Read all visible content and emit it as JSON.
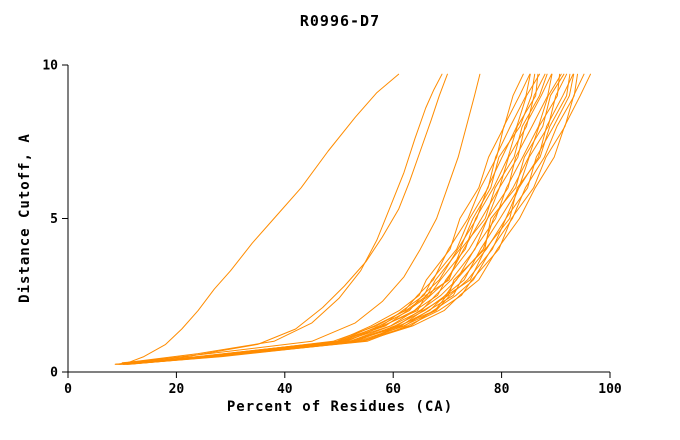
{
  "colors": {
    "curve": "#ff8c00",
    "axis": "#000000",
    "background": "#ffffff"
  },
  "chart_data": {
    "type": "line",
    "title": "R0996-D7",
    "xlabel": "Percent of Residues (CA)",
    "ylabel": "Distance Cutoff, A",
    "xlim": [
      0,
      100
    ],
    "ylim": [
      0,
      10
    ],
    "xticks": [
      0,
      20,
      40,
      60,
      80,
      100
    ],
    "yticks": [
      0,
      5,
      10
    ],
    "grid": false,
    "legend": null,
    "line_color": "#ff8c00",
    "shared_y": [
      0.25,
      0.5,
      1,
      1.5,
      2,
      2.5,
      3,
      4,
      5,
      6,
      7,
      8,
      9,
      9.7
    ],
    "series": [
      {
        "x": [
          9.2,
          23.9,
          49.6,
          55.9,
          61.1,
          64.8,
          66.1,
          70.5,
          72.3,
          75.8,
          77.6,
          80.5,
          82.1,
          84.0
        ]
      },
      {
        "x": [
          8.7,
          25.0,
          48.9,
          56.9,
          62.1,
          64.5,
          67.4,
          70.2,
          73.8,
          76.1,
          79.1,
          80.4,
          83.3,
          85.2
        ]
      },
      {
        "x": [
          9.7,
          24.2,
          49.8,
          57.9,
          61.7,
          65.7,
          67.1,
          71.7,
          74.1,
          77.5,
          78.9,
          81.6,
          84.5,
          85.3
        ]
      },
      {
        "x": [
          8.8,
          24.9,
          50.7,
          57.4,
          63.0,
          65.4,
          68.5,
          71.9,
          75.4,
          77.4,
          80.1,
          82.8,
          84.6,
          87.0
        ]
      },
      {
        "x": [
          9.4,
          25.7,
          50.2,
          58.6,
          62.6,
          66.7,
          68.7,
          73.3,
          75.2,
          78.5,
          81.2,
          82.9,
          86.3,
          86.7
        ]
      },
      {
        "x": [
          10.1,
          25.0,
          51.3,
          58.2,
          63.9,
          66.9,
          70.0,
          73.0,
          76.3,
          79.6,
          81.3,
          84.6,
          86.0,
          88.0
        ]
      },
      {
        "x": [
          9.4,
          25.9,
          50.8,
          59.5,
          64.0,
          68.2,
          69.7,
          74.0,
          77.4,
          79.6,
          83.0,
          84.3,
          87.3,
          89.2
        ]
      },
      {
        "x": [
          10.2,
          25.3,
          52.0,
          59.6,
          65.2,
          67.8,
          70.7,
          75.1,
          77.4,
          81.2,
          82.6,
          85.6,
          88.5,
          89.3
        ]
      },
      {
        "x": [
          9.5,
          26.3,
          52.0,
          60.7,
          64.9,
          68.8,
          71.7,
          75.0,
          78.9,
          80.9,
          83.9,
          86.8,
          88.6,
          91.0
        ]
      },
      {
        "x": [
          10.4,
          26.2,
          53.1,
          60.3,
          65.8,
          69.7,
          71.6,
          76.6,
          78.5,
          82.1,
          85.0,
          86.9,
          90.3,
          90.7
        ]
      },
      {
        "x": [
          10.2,
          27.1,
          52.6,
          61.2,
          66.7,
          69.6,
          73.1,
          76.1,
          79.7,
          83.2,
          85.1,
          88.6,
          90.0,
          92.0
        ]
      },
      {
        "x": [
          11.1,
          26.4,
          53.4,
          62.1,
          66.5,
          71.1,
          72.6,
          77.2,
          80.8,
          83.2,
          86.8,
          88.3,
          91.3,
          93.2
        ]
      },
      {
        "x": [
          10.3,
          27.1,
          54.2,
          61.9,
          67.9,
          70.5,
          73.7,
          78.3,
          80.8,
          84.8,
          86.4,
          89.6,
          92.5,
          93.3
        ]
      },
      {
        "x": [
          10.9,
          27.7,
          53.9,
          63.2,
          67.4,
          71.6,
          74.8,
          78.1,
          82.0,
          84.4,
          87.9,
          90.2,
          93.4,
          94.0
        ]
      },
      {
        "x": [
          11.4,
          27.3,
          55.2,
          62.6,
          68.4,
          72.6,
          74.5,
          79.5,
          81.8,
          85.9,
          88.2,
          91.7,
          93.3,
          95.2
        ]
      },
      {
        "x": [
          10.9,
          28.4,
          54.5,
          63.6,
          69.4,
          72.3,
          75.8,
          79.2,
          83.3,
          86.2,
          89.7,
          91.6,
          94.5,
          96.4
        ]
      },
      {
        "x": [
          9.8,
          24.5,
          51.5,
          58.0,
          64.5,
          66.0,
          70.3,
          72.5,
          77.0,
          78.8,
          82.3,
          83.8,
          87.0,
          88.4
        ]
      },
      {
        "x": [
          10.6,
          26.8,
          52.3,
          61.5,
          65.5,
          70.2,
          71.2,
          76.9,
          78.0,
          82.6,
          84.2,
          87.6,
          89.0,
          91.5
        ]
      },
      {
        "x": [
          10.8,
          27.4,
          54.6,
          61.0,
          67.7,
          69.9,
          74.2,
          77.0,
          81.5,
          82.9,
          87.1,
          88.9,
          92.0,
          92.6
        ]
      },
      {
        "x": [
          9.0,
          24.0,
          50.0,
          56.5,
          62.3,
          66.3,
          67.8,
          72.3,
          74.7,
          78.0,
          79.5,
          83.4,
          85.5,
          86.1
        ]
      },
      {
        "x": [
          11,
          14,
          18,
          21,
          24,
          27,
          30,
          34,
          38,
          43,
          48,
          53,
          57,
          61
        ],
        "y": [
          0.3,
          0.5,
          0.9,
          1.4,
          2,
          2.7,
          3.3,
          4.2,
          5,
          6,
          7.2,
          8.3,
          9.1,
          9.7
        ]
      },
      {
        "x": [
          10,
          22,
          35,
          42,
          47,
          51,
          55,
          58,
          61,
          63,
          65,
          67,
          68.5,
          70
        ],
        "y": [
          0.3,
          0.5,
          0.9,
          1.4,
          2.1,
          2.8,
          3.6,
          4.4,
          5.3,
          6.2,
          7.2,
          8.2,
          9,
          9.7
        ]
      },
      {
        "x": [
          10.5,
          24,
          38,
          45,
          50,
          54,
          57,
          59.5,
          62,
          64,
          66,
          67.5,
          69
        ],
        "y": [
          0.3,
          0.6,
          1,
          1.6,
          2.4,
          3.3,
          4.3,
          5.4,
          6.5,
          7.6,
          8.6,
          9.2,
          9.7
        ]
      },
      {
        "x": [
          11,
          26,
          45,
          53,
          58,
          62,
          65,
          68,
          70,
          72,
          73.5,
          75,
          76
        ],
        "y": [
          0.3,
          0.6,
          1,
          1.6,
          2.3,
          3.1,
          4,
          5,
          6,
          7,
          8,
          9,
          9.7
        ]
      }
    ]
  }
}
